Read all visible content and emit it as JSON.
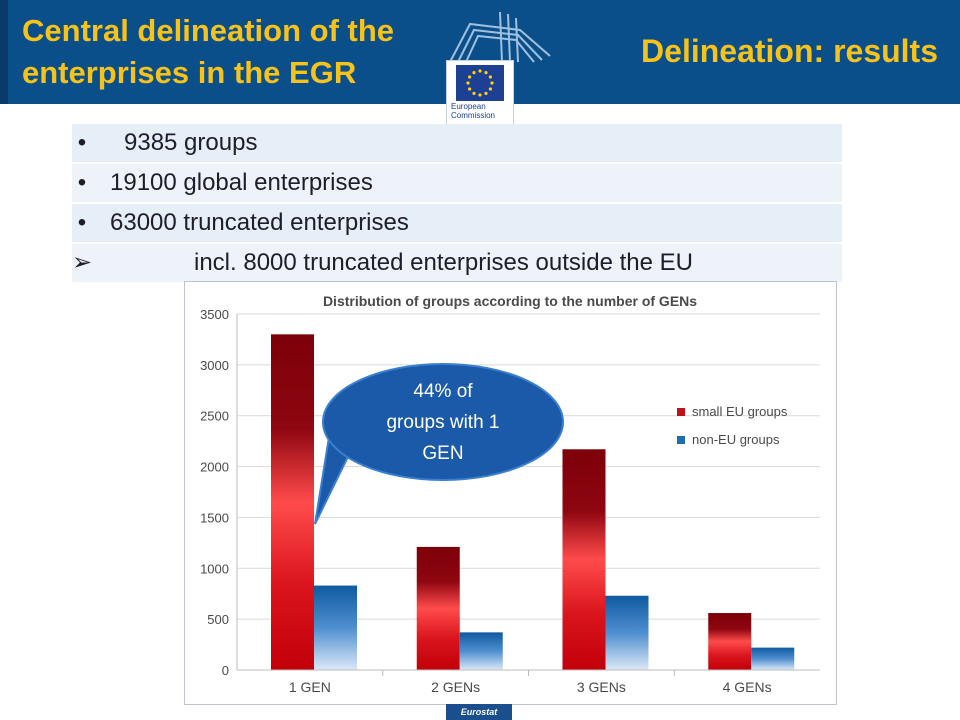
{
  "header": {
    "left_title_line1": "Central delineation of the",
    "left_title_line2": "enterprises in the EGR",
    "right_title": "Delineation: results",
    "logo_text_line1": "European",
    "logo_text_line2": "Commission"
  },
  "bullets": [
    {
      "marker": "•",
      "text": "9385 groups"
    },
    {
      "marker": "•",
      "text": "19100 global enterprises"
    },
    {
      "marker": "•",
      "text": "63000 truncated enterprises"
    },
    {
      "marker": "➢",
      "text": "incl. 8000 truncated enterprises outside the EU"
    }
  ],
  "callout": {
    "line1": "44% of",
    "line2": "groups with 1",
    "line3": "GEN"
  },
  "footer": {
    "badge": "Eurostat"
  },
  "colors": {
    "header_bg": "#0b4f8a",
    "title_yellow": "#f7c21a",
    "red_series": "#c0121b",
    "blue_series": "#1f6db4",
    "callout_fill": "#1a5aa8"
  },
  "chart_data": {
    "type": "bar",
    "title": "Distribution of groups according to the number of GENs",
    "categories": [
      "1 GEN",
      "2 GENs",
      "3 GENs",
      "4 GENs"
    ],
    "series": [
      {
        "name": "small EU groups",
        "values": [
          3300,
          1210,
          2170,
          560
        ]
      },
      {
        "name": "non-EU groups",
        "values": [
          830,
          370,
          730,
          220
        ]
      }
    ],
    "ylim": [
      0,
      3500
    ],
    "yticks": [
      "0",
      "500",
      "1000",
      "1500",
      "2000",
      "2500",
      "3000",
      "3500"
    ],
    "grid": true,
    "legend": "right"
  }
}
